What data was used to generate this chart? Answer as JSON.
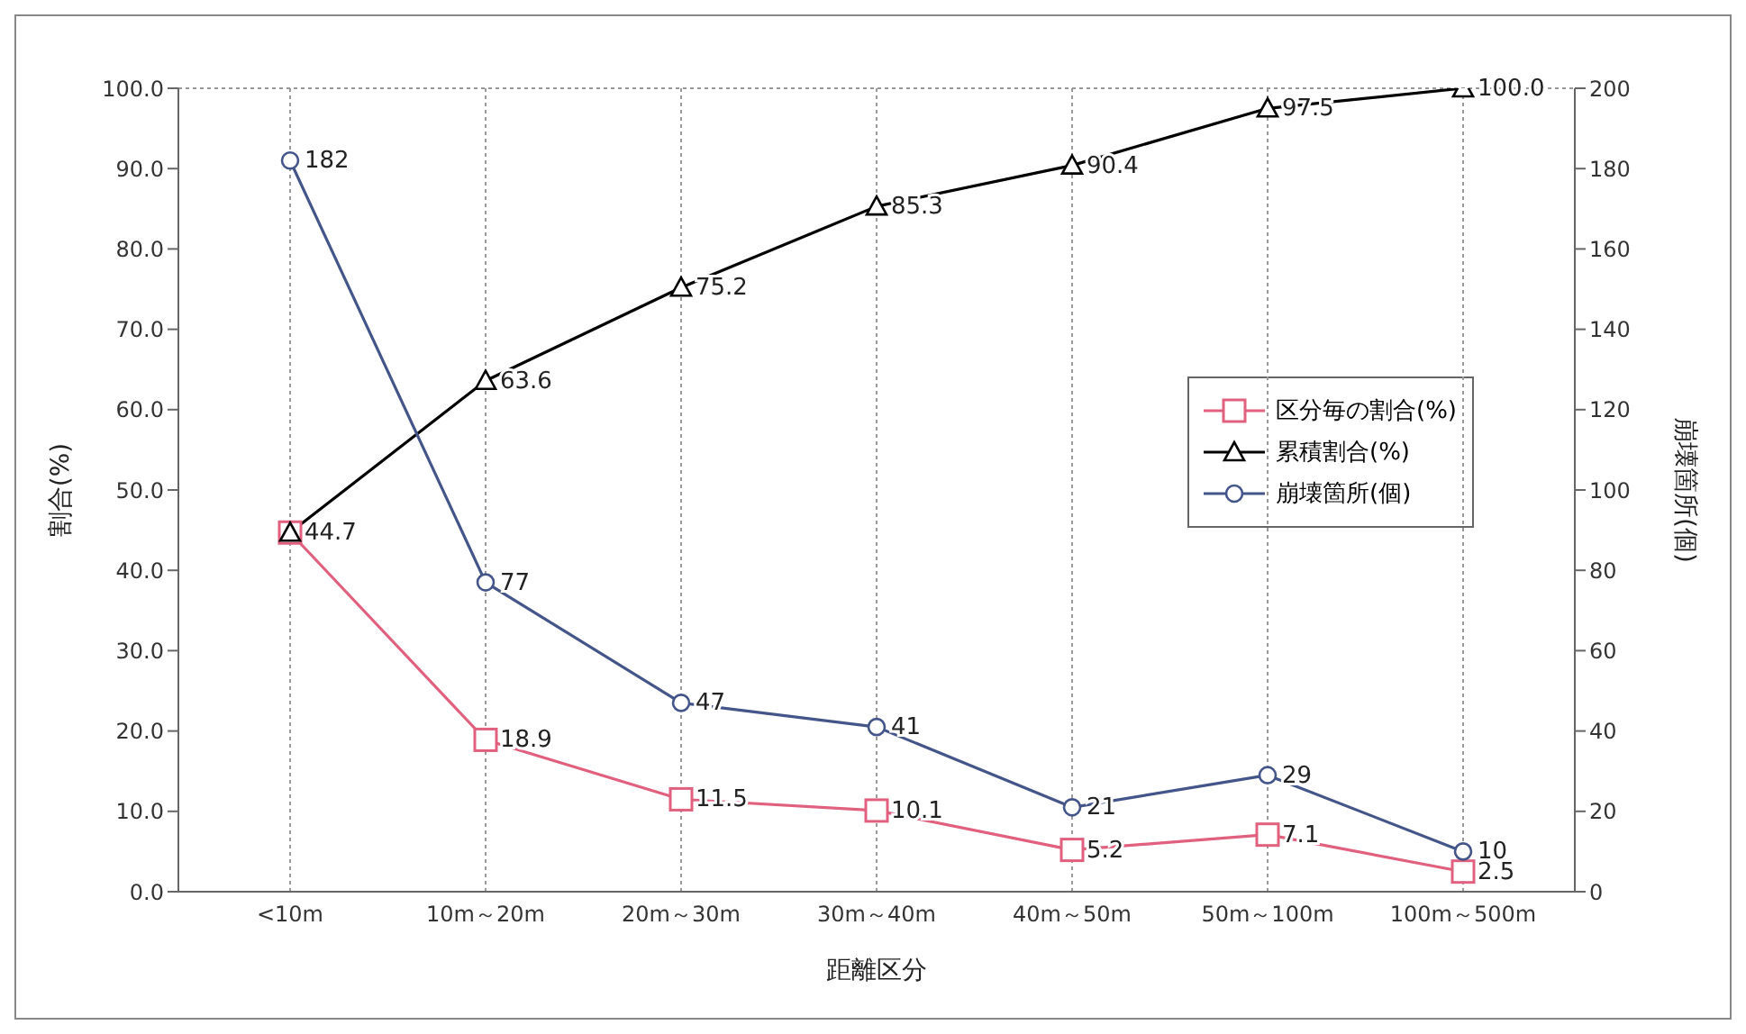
{
  "chart_data": {
    "type": "line",
    "xlabel": "距離区分",
    "ylabel": "割合(%)",
    "y2label": "崩壊箇所(個)",
    "categories": [
      "<10m",
      "10m～20m",
      "20m～30m",
      "30m～40m",
      "40m～50m",
      "50m～100m",
      "100m～500m"
    ],
    "series": [
      {
        "name": "区分毎の割合(%)",
        "color": "#e0607e",
        "marker": "square",
        "values": [
          44.7,
          18.9,
          11.5,
          10.1,
          5.2,
          7.1,
          2.5
        ],
        "value_labels": [
          null,
          "18.9",
          "11.5",
          "10.1",
          "5.2",
          "7.1",
          "2.5"
        ]
      },
      {
        "name": "累積割合(%)",
        "color": "#000000",
        "marker": "triangle",
        "values": [
          44.7,
          63.6,
          75.2,
          85.3,
          90.4,
          97.5,
          100.0
        ],
        "value_labels": [
          "44.7",
          "63.6",
          "75.2",
          "85.3",
          "90.4",
          "97.5",
          "100.0"
        ]
      },
      {
        "name": "崩壊箇所(個)",
        "color": "#44558a",
        "marker": "circle",
        "axis": "y2",
        "values": [
          182,
          77,
          47,
          41,
          21,
          29,
          10
        ],
        "value_labels": [
          "182",
          "77",
          "47",
          "41",
          "21",
          "29",
          "10"
        ]
      }
    ],
    "ylim": [
      0,
      100
    ],
    "yticks": [
      {
        "value": 0,
        "label": "0.0"
      },
      {
        "value": 10,
        "label": "10.0"
      },
      {
        "value": 20,
        "label": "20.0"
      },
      {
        "value": 30,
        "label": "30.0"
      },
      {
        "value": 40,
        "label": "40.0"
      },
      {
        "value": 50,
        "label": "50.0"
      },
      {
        "value": 60,
        "label": "60.0"
      },
      {
        "value": 70,
        "label": "70.0"
      },
      {
        "value": 80,
        "label": "80.0"
      },
      {
        "value": 90,
        "label": "90.0"
      },
      {
        "value": 100,
        "label": "100.0"
      }
    ],
    "y2lim": [
      0,
      200
    ],
    "y2ticks": [
      0,
      20,
      40,
      60,
      80,
      100,
      120,
      140,
      160,
      180,
      200
    ],
    "grid": true,
    "legend": "right",
    "line_style": "solid"
  }
}
